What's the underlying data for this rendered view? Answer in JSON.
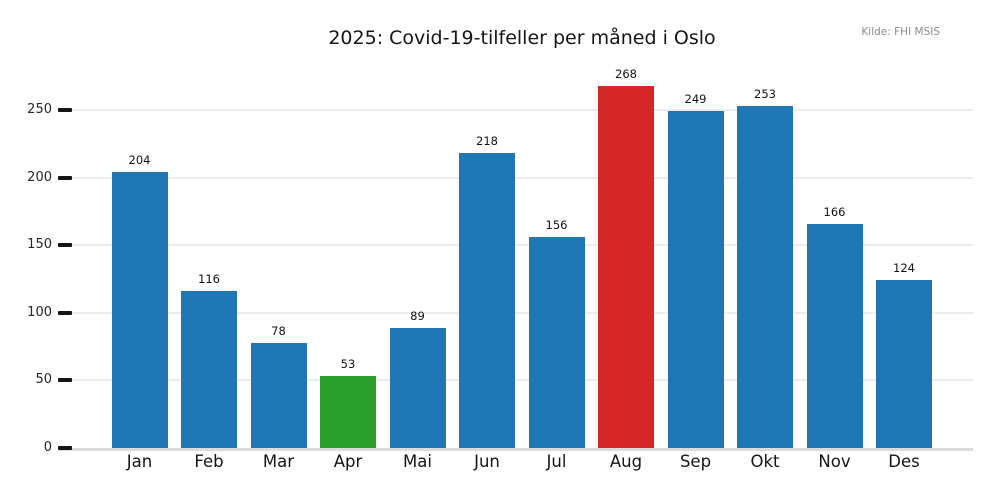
{
  "title": "2025: Covid-19-tilfeller per måned i Oslo",
  "source_note": "Kilde: FHI MSIS",
  "chart_data": {
    "type": "bar",
    "title": "2025: Covid-19-tilfeller per måned i Oslo",
    "categories": [
      "Jan",
      "Feb",
      "Mar",
      "Apr",
      "Mai",
      "Jun",
      "Jul",
      "Aug",
      "Sep",
      "Okt",
      "Nov",
      "Des"
    ],
    "values": [
      204,
      116,
      78,
      53,
      89,
      218,
      156,
      268,
      249,
      253,
      166,
      124
    ],
    "bar_colors": [
      "#1f77b4",
      "#1f77b4",
      "#1f77b4",
      "#2ca02c",
      "#1f77b4",
      "#1f77b4",
      "#1f77b4",
      "#d62728",
      "#1f77b4",
      "#1f77b4",
      "#1f77b4",
      "#1f77b4"
    ],
    "default_bar_color": "#1f77b4",
    "min_bar_color": "#2ca02c",
    "max_bar_color": "#d62728",
    "xlabel": "",
    "ylabel": "",
    "ylim": [
      0,
      280
    ],
    "yticks": [
      0,
      50,
      100,
      150,
      200,
      250
    ],
    "grid": "horizontal-light",
    "value_labels": true,
    "legend": "none"
  },
  "colors": {
    "grid": "#ececec",
    "baseline": "#dcdcdc",
    "tick": "#151515",
    "text": "#111111",
    "muted_text": "#8c8c8c",
    "background": "#ffffff"
  }
}
